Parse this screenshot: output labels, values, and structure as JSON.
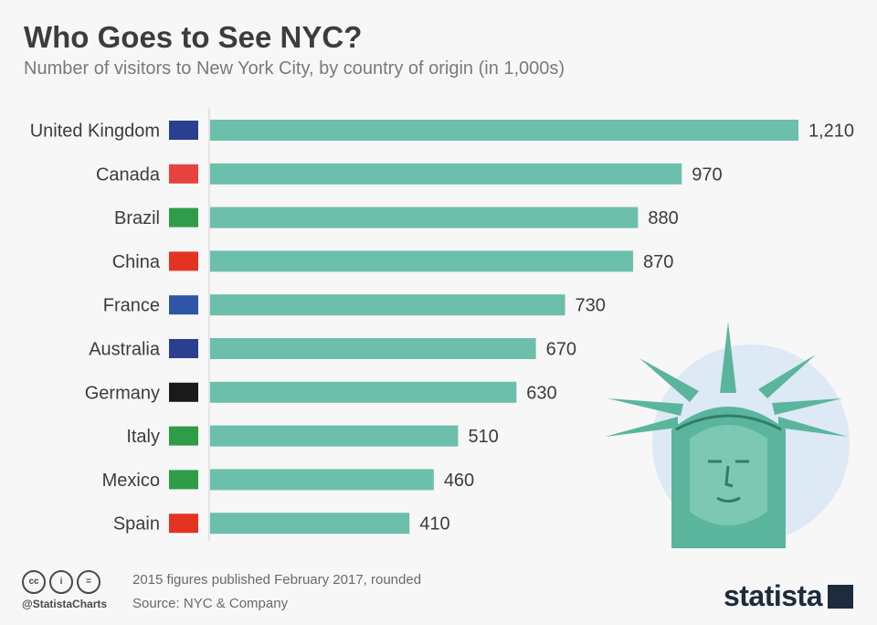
{
  "title": "Who Goes to See NYC?",
  "subtitle": "Number of visitors to New York City, by country of origin (in 1,000s)",
  "footer": {
    "note1": "2015 figures published February 2017, rounded",
    "note2": "Source: NYC & Company",
    "handle": "@StatistaCharts",
    "brand": "statista"
  },
  "icons": [
    "cc-icon",
    "by-icon",
    "nd-icon"
  ],
  "colors": {
    "bar": "#6cbfab",
    "statue": "#5bb59d",
    "halo": "#dde9f5"
  },
  "chart_data": {
    "type": "bar",
    "orientation": "horizontal",
    "title": "Who Goes to See NYC?",
    "subtitle": "Number of visitors to New York City, by country of origin (in 1,000s)",
    "categories": [
      "United Kingdom",
      "Canada",
      "Brazil",
      "China",
      "France",
      "Australia",
      "Germany",
      "Italy",
      "Mexico",
      "Spain"
    ],
    "values": [
      1210,
      970,
      880,
      870,
      730,
      670,
      630,
      510,
      460,
      410
    ],
    "value_labels": [
      "1,210",
      "970",
      "880",
      "870",
      "730",
      "670",
      "630",
      "510",
      "460",
      "410"
    ],
    "xlim": [
      0,
      1210
    ],
    "grid": false,
    "legend": "none"
  }
}
